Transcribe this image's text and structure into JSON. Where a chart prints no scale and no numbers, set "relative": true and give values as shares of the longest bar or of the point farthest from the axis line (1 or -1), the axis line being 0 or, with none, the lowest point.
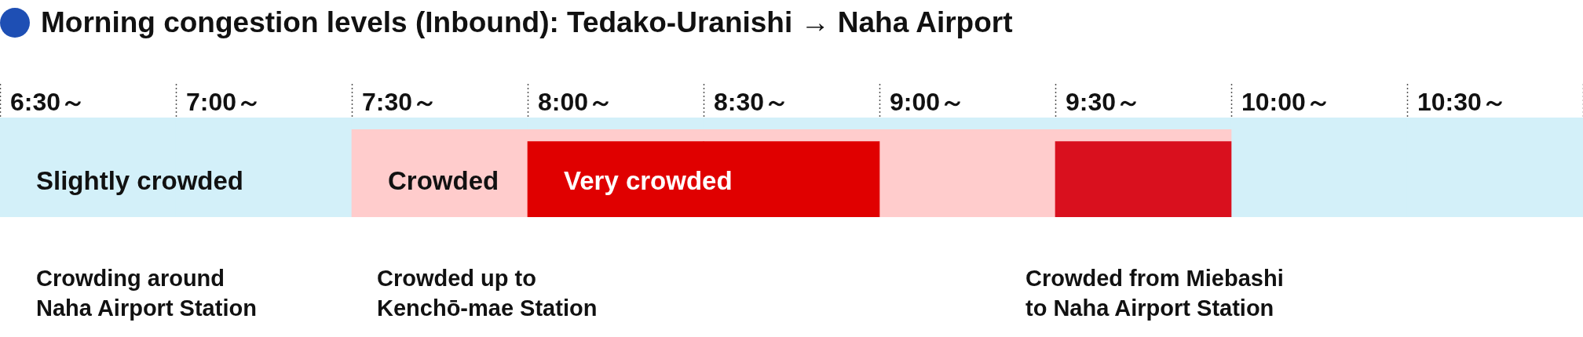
{
  "chart_data": {
    "type": "bar",
    "title": "Morning congestion levels (Inbound): Tedako-Uranishi → Naha Airport",
    "categories": [
      "6:30～",
      "7:00～",
      "7:30～",
      "8:00～",
      "8:30～",
      "9:00～",
      "9:30～",
      "10:00～",
      "10:30～"
    ],
    "relative": true,
    "stacked": true,
    "series": [
      {
        "name": "Very crowded",
        "color": "#e00000",
        "values": [
          null,
          null,
          null,
          0.76,
          0.76,
          null,
          null,
          null,
          null
        ]
      },
      {
        "color": "#d9101e",
        "values": [
          null,
          null,
          null,
          null,
          null,
          null,
          0.76,
          null,
          null
        ]
      },
      {
        "name": "Crowded",
        "color": "#ffcccc",
        "values": [
          null,
          null,
          0.88,
          0.12,
          0.12,
          0.88,
          0.12,
          null,
          null
        ]
      },
      {
        "name": "Slightly crowded",
        "color": "#d3f0f9",
        "values": [
          1,
          1,
          0.12,
          0.12,
          0.12,
          0.12,
          0.12,
          1,
          1
        ]
      }
    ],
    "annotations": [
      "Crowding around\nNaha Airport Station",
      "Crowded up to\nKenchō-mae Station",
      "Crowded from Miebashi\nto Naha Airport Station"
    ]
  }
}
